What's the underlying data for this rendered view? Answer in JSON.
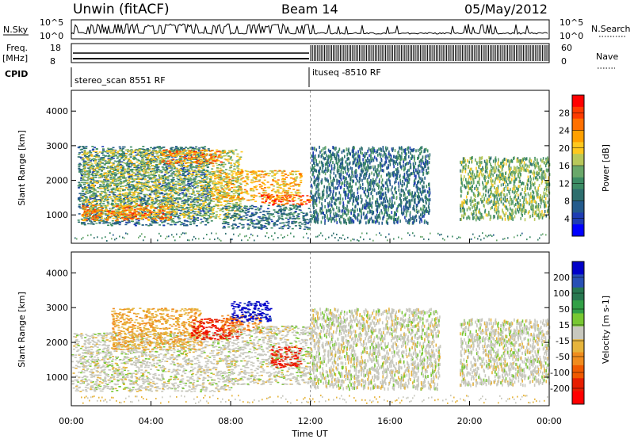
{
  "header": {
    "station": "Unwin (fitACF)",
    "beam": "Beam 14",
    "date": "05/May/2012"
  },
  "strips": {
    "nsky_label": "N.Sky",
    "nsearch_label": "N.Search",
    "nsky_ticks": [
      "10^5",
      "10^0"
    ],
    "freq_label": "Freq.",
    "freq_unit": "[MHz]",
    "freq_ticks": [
      "18",
      "8"
    ],
    "nave_label": "Nave",
    "nave_ticks": [
      "60",
      "0"
    ],
    "cpid_label": "CPID",
    "cpid_segments": [
      {
        "label": "stereo_scan 8551 RF",
        "start": "00:00"
      },
      {
        "label": "ituseq -8510 RF",
        "start": "12:00"
      }
    ]
  },
  "colorbars": {
    "power": {
      "label": "Power [dB]",
      "ticks": [
        "28",
        "24",
        "20",
        "16",
        "12",
        "8",
        "4"
      ],
      "colors": [
        "#ff0000",
        "#ff3b00",
        "#ff7000",
        "#ffa000",
        "#ffc81e",
        "#b9c85a",
        "#6aa86a",
        "#3c8c64",
        "#2d6e6e",
        "#235a8c",
        "#1e3cb4",
        "#0000ff"
      ]
    },
    "velocity": {
      "label": "Velocity [m s-1]",
      "ticks": [
        "200",
        "100",
        "50",
        "15",
        "-15",
        "-50",
        "-100",
        "-200"
      ],
      "colors": [
        "#0000c8",
        "#2850b4",
        "#287850",
        "#32a046",
        "#78c832",
        "#c8c8be",
        "#e6b43c",
        "#f08c1e",
        "#f05a00",
        "#e61e00",
        "#ff0000"
      ]
    }
  },
  "chart_data": [
    {
      "type": "heatmap",
      "title": "Power",
      "xlabel": "Time UT",
      "ylabel": "Slant Range [km]",
      "x_ticks": [
        "00:00",
        "04:00",
        "08:00",
        "12:00",
        "16:00",
        "20:00",
        "00:00"
      ],
      "y_ticks": [
        "1000",
        "2000",
        "3000",
        "4000"
      ],
      "xlim": [
        0,
        24
      ],
      "ylim": [
        180,
        4600
      ],
      "regions": [
        {
          "t": [
            0.3,
            7.0
          ],
          "r": [
            700,
            3000
          ],
          "value_db": 8
        },
        {
          "t": [
            0.5,
            8.5
          ],
          "r": [
            900,
            2900
          ],
          "value_db": 16
        },
        {
          "t": [
            0.5,
            5.0
          ],
          "r": [
            850,
            1300
          ],
          "value_db": 24
        },
        {
          "t": [
            4.5,
            7.5
          ],
          "r": [
            2500,
            2900
          ],
          "value_db": 24
        },
        {
          "t": [
            7.0,
            11.5
          ],
          "r": [
            1400,
            2300
          ],
          "value_db": 20
        },
        {
          "t": [
            9.5,
            12.0
          ],
          "r": [
            1300,
            1600
          ],
          "value_db": 26
        },
        {
          "t": [
            7.5,
            12.0
          ],
          "r": [
            600,
            1300
          ],
          "value_db": 8
        },
        {
          "t": [
            12.0,
            18.0
          ],
          "r": [
            800,
            3000
          ],
          "value_db": 8
        },
        {
          "t": [
            19.5,
            24.0
          ],
          "r": [
            900,
            2700
          ],
          "value_db": 14
        }
      ]
    },
    {
      "type": "heatmap",
      "title": "Velocity",
      "xlabel": "Time UT",
      "ylabel": "Slant Range [km]",
      "x_ticks": [
        "00:00",
        "04:00",
        "08:00",
        "12:00",
        "16:00",
        "20:00",
        "00:00"
      ],
      "y_ticks": [
        "1000",
        "2000",
        "3000",
        "4000"
      ],
      "xlim": [
        0,
        24
      ],
      "ylim": [
        180,
        4600
      ],
      "regions": [
        {
          "t": [
            0.0,
            8.0
          ],
          "r": [
            600,
            2300
          ],
          "value_ms": 0
        },
        {
          "t": [
            2.0,
            6.5
          ],
          "r": [
            1800,
            3000
          ],
          "value_ms": -60
        },
        {
          "t": [
            6.0,
            8.5
          ],
          "r": [
            2100,
            2700
          ],
          "value_ms": -180
        },
        {
          "t": [
            7.5,
            9.5
          ],
          "r": [
            2300,
            2800
          ],
          "value_ms": -100
        },
        {
          "t": [
            8.0,
            10.0
          ],
          "r": [
            2600,
            3200
          ],
          "value_ms": 220
        },
        {
          "t": [
            8.0,
            12.0
          ],
          "r": [
            800,
            2500
          ],
          "value_ms": 0
        },
        {
          "t": [
            10.0,
            11.5
          ],
          "r": [
            1300,
            1900
          ],
          "value_ms": -180
        },
        {
          "t": [
            12.0,
            18.5
          ],
          "r": [
            700,
            3000
          ],
          "value_ms": 0
        },
        {
          "t": [
            19.5,
            24.0
          ],
          "r": [
            800,
            2700
          ],
          "value_ms": 0
        }
      ]
    }
  ]
}
